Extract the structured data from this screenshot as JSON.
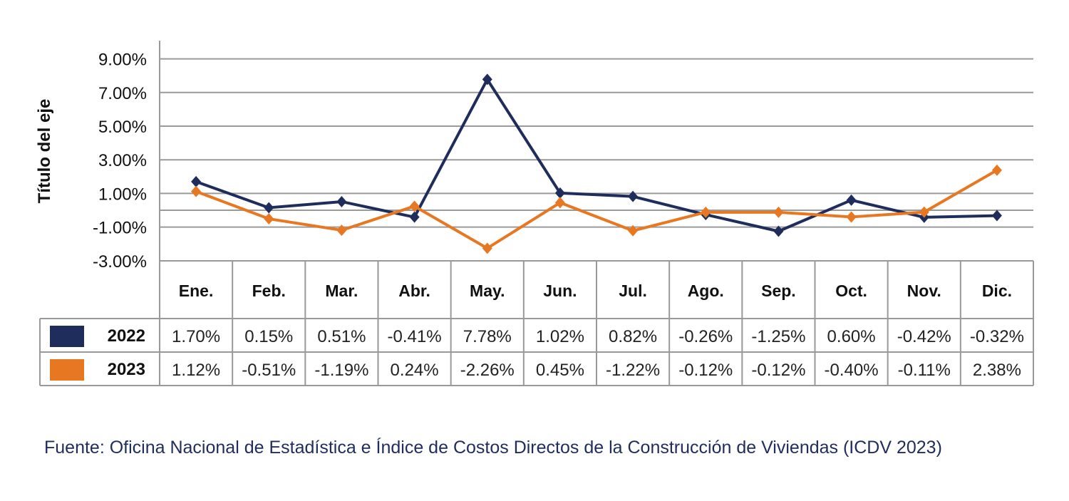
{
  "chart_data": {
    "type": "line",
    "title": "",
    "ylabel": "Título del eje",
    "xlabel": "",
    "ylim": [
      -3,
      9
    ],
    "yticks": [
      "9.00%",
      "7.00%",
      "5.00%",
      "3.00%",
      "1.00%",
      "-1.00%",
      "-3.00%"
    ],
    "ytick_values": [
      9,
      7,
      5,
      3,
      1,
      -1,
      -3
    ],
    "grid": true,
    "legend": "data-table-left",
    "categories": [
      "Ene.",
      "Feb.",
      "Mar.",
      "Abr.",
      "May.",
      "Jun.",
      "Jul.",
      "Ago.",
      "Sep.",
      "Oct.",
      "Nov.",
      "Dic."
    ],
    "series": [
      {
        "name": "2022",
        "color": "#1f2d5c",
        "marker": "diamond",
        "values": [
          1.7,
          0.15,
          0.51,
          -0.41,
          7.78,
          1.02,
          0.82,
          -0.26,
          -1.25,
          0.6,
          -0.42,
          -0.32
        ],
        "labels": [
          "1.70%",
          "0.15%",
          "0.51%",
          "-0.41%",
          "7.78%",
          "1.02%",
          "0.82%",
          "-0.26%",
          "-1.25%",
          "0.60%",
          "-0.42%",
          "-0.32%"
        ]
      },
      {
        "name": "2023",
        "color": "#e87722",
        "marker": "diamond",
        "values": [
          1.12,
          -0.51,
          -1.19,
          0.24,
          -2.26,
          0.45,
          -1.22,
          -0.12,
          -0.12,
          -0.4,
          -0.11,
          2.38
        ],
        "labels": [
          "1.12%",
          "-0.51%",
          "-1.19%",
          "0.24%",
          "-2.26%",
          "0.45%",
          "-1.22%",
          "-0.12%",
          "-0.12%",
          "-0.40%",
          "-0.11%",
          "2.38%"
        ]
      }
    ]
  },
  "source": "Fuente: Oficina Nacional de Estadística e Índice de Costos Directos de la Construcción de Viviendas (ICDV 2023)"
}
